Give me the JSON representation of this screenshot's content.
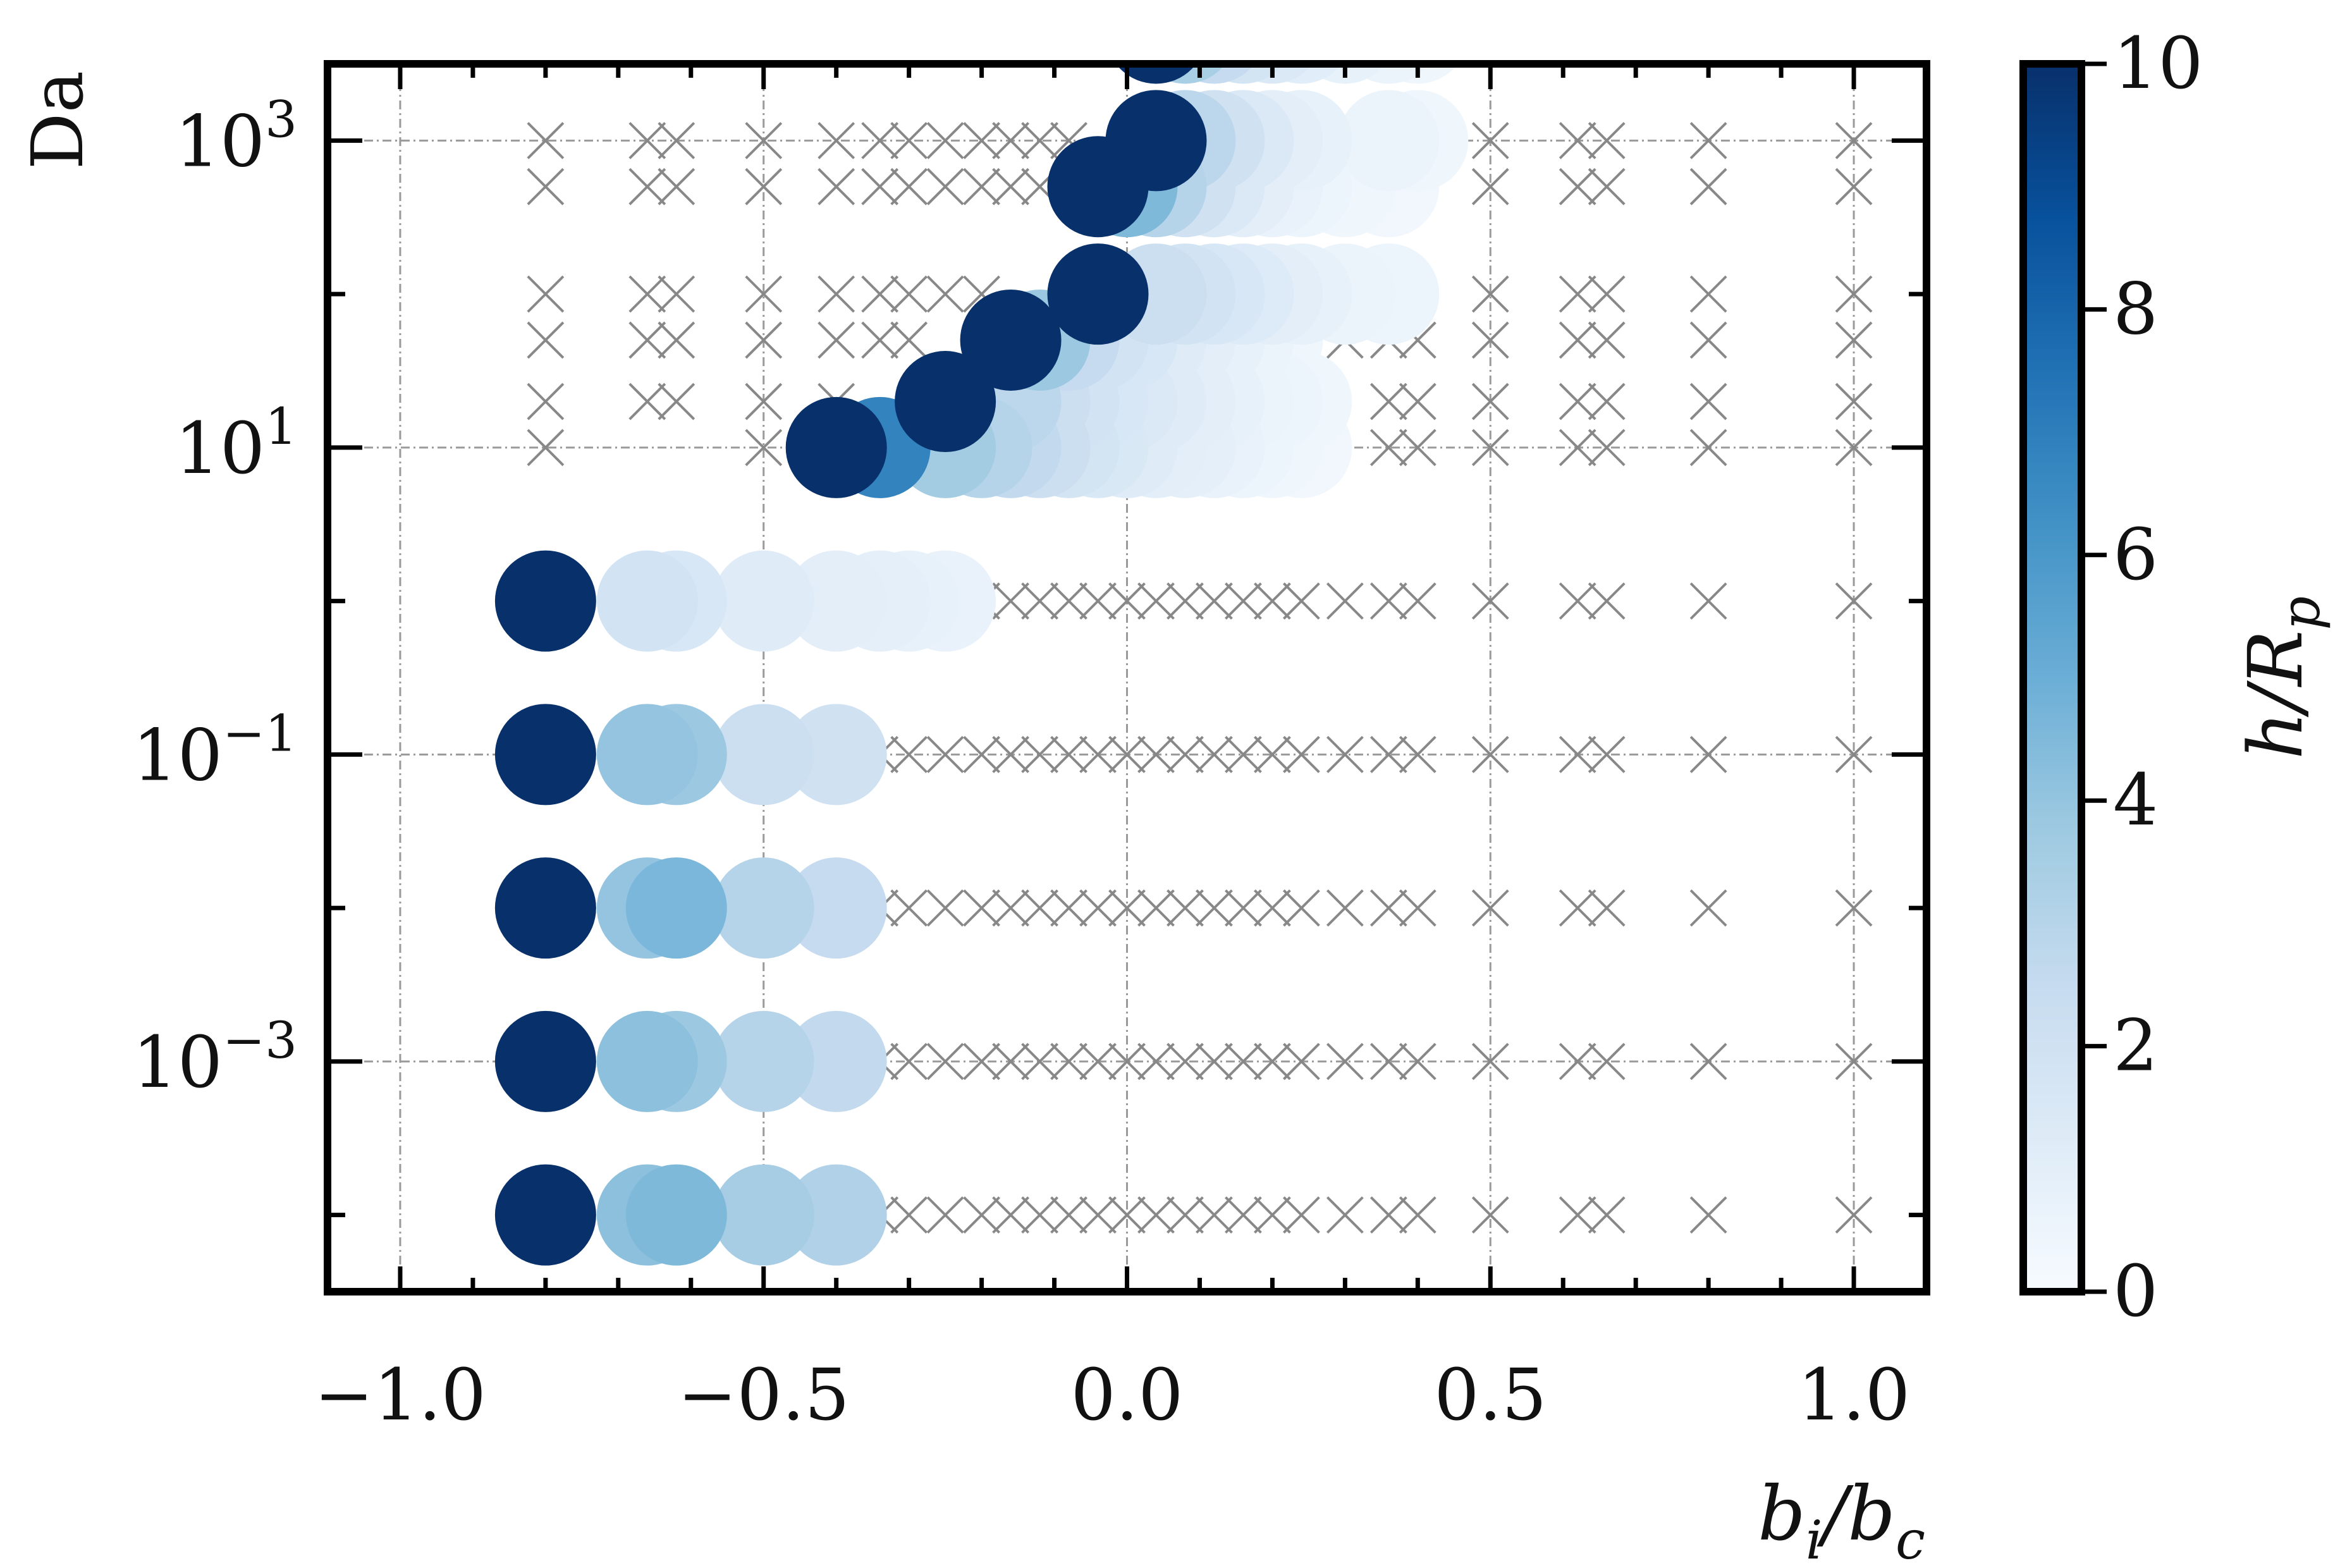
{
  "chart_data": {
    "type": "scatter",
    "xlabel": "b_i/b_c",
    "ylabel": "Da",
    "colorbar_label": "h/R_p",
    "xlim": [
      -1.1,
      1.1
    ],
    "ylim_log10": [
      -4.5,
      3.5
    ],
    "y_scale": "log",
    "grid": true,
    "x_ticks": [
      -1.0,
      -0.5,
      0.0,
      0.5,
      1.0
    ],
    "x_tick_labels": [
      "−1.0",
      "−0.5",
      "0.0",
      "0.5",
      "1.0"
    ],
    "y_ticks_log10": [
      -3,
      -1,
      1,
      3
    ],
    "y_tick_labels": [
      {
        "base": "10",
        "exp": "−3"
      },
      {
        "base": "10",
        "exp": "−1"
      },
      {
        "base": "10",
        "exp": "1"
      },
      {
        "base": "10",
        "exp": "3"
      }
    ],
    "colorbar": {
      "range": [
        0,
        10
      ],
      "ticks": [
        0,
        2,
        4,
        6,
        8,
        10
      ],
      "tick_labels": [
        "0",
        "2",
        "4",
        "6",
        "8",
        "10"
      ],
      "colors": [
        "#f7fbff",
        "#deebf7",
        "#c6dbef",
        "#9ecae1",
        "#6baed6",
        "#4292c6",
        "#2171b5",
        "#08519c",
        "#08306b"
      ]
    },
    "marker_color": "#888888",
    "no_depth_x_values": [
      -1.0,
      -0.8,
      -0.66,
      -0.62,
      -0.5,
      -0.4,
      -0.34,
      -0.3,
      -0.25,
      -0.2,
      -0.16,
      -0.12,
      -0.08,
      -0.04,
      0.0,
      0.04,
      0.08,
      0.12,
      0.16,
      0.2,
      0.24,
      0.3,
      0.36,
      0.4,
      0.5,
      0.62,
      0.66,
      0.8,
      1.0
    ],
    "no_depth_rows": [
      {
        "log10_da": -4,
        "x_min": -0.37
      },
      {
        "log10_da": -3,
        "x_min": -0.37
      },
      {
        "log10_da": -2,
        "x_min": -0.37
      },
      {
        "log10_da": -1,
        "x_min": -0.37
      },
      {
        "log10_da": 0,
        "x_min": -0.21
      },
      {
        "log10_da": 1,
        "x_min": 0.32
      },
      {
        "log10_da": 1.3,
        "x_min": 0.32
      },
      {
        "log10_da": 1.7,
        "x_min": 0.26
      },
      {
        "log10_da": 2,
        "x_min": 0.2
      },
      {
        "log10_da": 2.7,
        "x_min": 0.5
      },
      {
        "log10_da": 3,
        "x_min": 0.5
      },
      {
        "log10_da": 3.7,
        "x_min": 0.5
      }
    ],
    "no_depth_extra": [
      {
        "x": -0.8,
        "log10_da": 1
      },
      {
        "x": -0.5,
        "log10_da": 1
      },
      {
        "x": -0.8,
        "log10_da": 1.3
      },
      {
        "x": -0.66,
        "log10_da": 1.3
      },
      {
        "x": -0.62,
        "log10_da": 1.3
      },
      {
        "x": -0.5,
        "log10_da": 1.3
      },
      {
        "x": -0.4,
        "log10_da": 1.3
      },
      {
        "x": -0.8,
        "log10_da": 1.7
      },
      {
        "x": -0.66,
        "log10_da": 1.7
      },
      {
        "x": -0.62,
        "log10_da": 1.7
      },
      {
        "x": -0.5,
        "log10_da": 1.7
      },
      {
        "x": -0.4,
        "log10_da": 1.7
      },
      {
        "x": -0.34,
        "log10_da": 1.7
      },
      {
        "x": -0.3,
        "log10_da": 1.7
      },
      {
        "x": -0.8,
        "log10_da": 2
      },
      {
        "x": -0.66,
        "log10_da": 2
      },
      {
        "x": -0.62,
        "log10_da": 2
      },
      {
        "x": -0.5,
        "log10_da": 2
      },
      {
        "x": -0.4,
        "log10_da": 2
      },
      {
        "x": -0.34,
        "log10_da": 2
      },
      {
        "x": -0.3,
        "log10_da": 2
      },
      {
        "x": -0.25,
        "log10_da": 2
      },
      {
        "x": -0.2,
        "log10_da": 2
      },
      {
        "x": -0.8,
        "log10_da": 2.7
      },
      {
        "x": -0.66,
        "log10_da": 2.7
      },
      {
        "x": -0.62,
        "log10_da": 2.7
      },
      {
        "x": -0.5,
        "log10_da": 2.7
      },
      {
        "x": -0.4,
        "log10_da": 2.7
      },
      {
        "x": -0.34,
        "log10_da": 2.7
      },
      {
        "x": -0.3,
        "log10_da": 2.7
      },
      {
        "x": -0.25,
        "log10_da": 2.7
      },
      {
        "x": -0.2,
        "log10_da": 2.7
      },
      {
        "x": -0.16,
        "log10_da": 2.7
      },
      {
        "x": -0.12,
        "log10_da": 2.7
      },
      {
        "x": -0.08,
        "log10_da": 2.7
      },
      {
        "x": -0.8,
        "log10_da": 3
      },
      {
        "x": -0.66,
        "log10_da": 3
      },
      {
        "x": -0.62,
        "log10_da": 3
      },
      {
        "x": -0.5,
        "log10_da": 3
      },
      {
        "x": -0.4,
        "log10_da": 3
      },
      {
        "x": -0.34,
        "log10_da": 3
      },
      {
        "x": -0.3,
        "log10_da": 3
      },
      {
        "x": -0.25,
        "log10_da": 3
      },
      {
        "x": -0.2,
        "log10_da": 3
      },
      {
        "x": -0.16,
        "log10_da": 3
      },
      {
        "x": -0.12,
        "log10_da": 3
      },
      {
        "x": -0.08,
        "log10_da": 3
      },
      {
        "x": -1.0,
        "log10_da": 3.7
      },
      {
        "x": -0.8,
        "log10_da": 3.7
      },
      {
        "x": -0.66,
        "log10_da": 3.7
      },
      {
        "x": -0.62,
        "log10_da": 3.7
      },
      {
        "x": -0.5,
        "log10_da": 3.7
      },
      {
        "x": -0.4,
        "log10_da": 3.7
      },
      {
        "x": -0.34,
        "log10_da": 3.7
      },
      {
        "x": -0.3,
        "log10_da": 3.7
      },
      {
        "x": -0.25,
        "log10_da": 3.7
      },
      {
        "x": -0.2,
        "log10_da": 3.7
      },
      {
        "x": -0.16,
        "log10_da": 3.7
      },
      {
        "x": -0.12,
        "log10_da": 3.7
      },
      {
        "x": -0.08,
        "log10_da": 3.7
      },
      {
        "x": -0.04,
        "log10_da": 3.7
      },
      {
        "x": 0.0,
        "log10_da": 3.7
      }
    ],
    "depth_points": [
      {
        "x": -0.4,
        "log10_da": -4,
        "h": 3.2
      },
      {
        "x": -0.5,
        "log10_da": -4,
        "h": 3.5
      },
      {
        "x": -0.62,
        "log10_da": -4,
        "h": 4.5
      },
      {
        "x": -0.66,
        "log10_da": -4,
        "h": 4.2
      },
      {
        "x": -0.8,
        "log10_da": -4,
        "h": 10
      },
      {
        "x": -0.4,
        "log10_da": -3,
        "h": 2.6
      },
      {
        "x": -0.5,
        "log10_da": -3,
        "h": 3.0
      },
      {
        "x": -0.62,
        "log10_da": -3,
        "h": 3.8
      },
      {
        "x": -0.66,
        "log10_da": -3,
        "h": 4.2
      },
      {
        "x": -0.8,
        "log10_da": -3,
        "h": 10
      },
      {
        "x": -0.4,
        "log10_da": -2,
        "h": 2.5
      },
      {
        "x": -0.5,
        "log10_da": -2,
        "h": 3.0
      },
      {
        "x": -0.62,
        "log10_da": -2,
        "h": 4.6
      },
      {
        "x": -0.66,
        "log10_da": -2,
        "h": 4.0
      },
      {
        "x": -0.8,
        "log10_da": -2,
        "h": 10
      },
      {
        "x": -0.4,
        "log10_da": -1,
        "h": 2.0
      },
      {
        "x": -0.5,
        "log10_da": -1,
        "h": 2.2
      },
      {
        "x": -0.62,
        "log10_da": -1,
        "h": 3.8
      },
      {
        "x": -0.66,
        "log10_da": -1,
        "h": 4.0
      },
      {
        "x": -0.8,
        "log10_da": -1,
        "h": 10
      },
      {
        "x": -0.25,
        "log10_da": 0,
        "h": 0.7
      },
      {
        "x": -0.3,
        "log10_da": 0,
        "h": 0.8
      },
      {
        "x": -0.34,
        "log10_da": 0,
        "h": 0.9
      },
      {
        "x": -0.4,
        "log10_da": 0,
        "h": 1.0
      },
      {
        "x": -0.5,
        "log10_da": 0,
        "h": 1.2
      },
      {
        "x": -0.62,
        "log10_da": 0,
        "h": 1.6
      },
      {
        "x": -0.66,
        "log10_da": 0,
        "h": 1.9
      },
      {
        "x": -0.8,
        "log10_da": 0,
        "h": 10
      },
      {
        "x": 0.24,
        "log10_da": 1,
        "h": 0.3
      },
      {
        "x": 0.2,
        "log10_da": 1,
        "h": 0.4
      },
      {
        "x": 0.16,
        "log10_da": 1,
        "h": 0.5
      },
      {
        "x": 0.12,
        "log10_da": 1,
        "h": 0.7
      },
      {
        "x": 0.08,
        "log10_da": 1,
        "h": 0.9
      },
      {
        "x": 0.04,
        "log10_da": 1,
        "h": 1.0
      },
      {
        "x": 0.0,
        "log10_da": 1,
        "h": 1.2
      },
      {
        "x": -0.04,
        "log10_da": 1,
        "h": 1.5
      },
      {
        "x": -0.08,
        "log10_da": 1,
        "h": 1.8
      },
      {
        "x": -0.12,
        "log10_da": 1,
        "h": 2.2
      },
      {
        "x": -0.16,
        "log10_da": 1,
        "h": 2.6
      },
      {
        "x": -0.2,
        "log10_da": 1,
        "h": 3.0
      },
      {
        "x": -0.25,
        "log10_da": 1,
        "h": 3.6
      },
      {
        "x": -0.34,
        "log10_da": 1,
        "h": 6.8
      },
      {
        "x": -0.4,
        "log10_da": 1,
        "h": 10
      },
      {
        "x": 0.24,
        "log10_da": 1.3,
        "h": 0.4
      },
      {
        "x": 0.2,
        "log10_da": 1.3,
        "h": 0.5
      },
      {
        "x": 0.16,
        "log10_da": 1.3,
        "h": 0.6
      },
      {
        "x": 0.12,
        "log10_da": 1.3,
        "h": 0.8
      },
      {
        "x": 0.08,
        "log10_da": 1.3,
        "h": 1.0
      },
      {
        "x": 0.04,
        "log10_da": 1.3,
        "h": 1.2
      },
      {
        "x": 0.0,
        "log10_da": 1.3,
        "h": 1.4
      },
      {
        "x": -0.04,
        "log10_da": 1.3,
        "h": 1.6
      },
      {
        "x": -0.08,
        "log10_da": 1.3,
        "h": 1.9
      },
      {
        "x": -0.12,
        "log10_da": 1.3,
        "h": 2.2
      },
      {
        "x": -0.16,
        "log10_da": 1.3,
        "h": 2.8
      },
      {
        "x": -0.25,
        "log10_da": 1.3,
        "h": 10
      },
      {
        "x": 0.2,
        "log10_da": 1.7,
        "h": 0.4
      },
      {
        "x": 0.16,
        "log10_da": 1.7,
        "h": 0.6
      },
      {
        "x": 0.12,
        "log10_da": 1.7,
        "h": 0.8
      },
      {
        "x": 0.08,
        "log10_da": 1.7,
        "h": 1.0
      },
      {
        "x": 0.04,
        "log10_da": 1.7,
        "h": 1.2
      },
      {
        "x": 0.0,
        "log10_da": 1.7,
        "h": 1.6
      },
      {
        "x": -0.04,
        "log10_da": 1.7,
        "h": 1.9
      },
      {
        "x": -0.08,
        "log10_da": 1.7,
        "h": 2.5
      },
      {
        "x": -0.12,
        "log10_da": 1.7,
        "h": 3.8
      },
      {
        "x": -0.16,
        "log10_da": 1.7,
        "h": 10
      },
      {
        "x": 0.36,
        "log10_da": 2,
        "h": 0.5
      },
      {
        "x": 0.3,
        "log10_da": 2,
        "h": 0.6
      },
      {
        "x": 0.24,
        "log10_da": 2,
        "h": 0.8
      },
      {
        "x": 0.2,
        "log10_da": 2,
        "h": 1.0
      },
      {
        "x": 0.16,
        "log10_da": 2,
        "h": 1.3
      },
      {
        "x": 0.12,
        "log10_da": 2,
        "h": 1.6
      },
      {
        "x": 0.08,
        "log10_da": 2,
        "h": 1.9
      },
      {
        "x": 0.04,
        "log10_da": 2,
        "h": 2.2
      },
      {
        "x": -0.04,
        "log10_da": 2,
        "h": 10
      },
      {
        "x": 0.36,
        "log10_da": 2.7,
        "h": 0.3
      },
      {
        "x": 0.3,
        "log10_da": 2.7,
        "h": 0.4
      },
      {
        "x": 0.24,
        "log10_da": 2.7,
        "h": 0.5
      },
      {
        "x": 0.2,
        "log10_da": 2.7,
        "h": 0.7
      },
      {
        "x": 0.16,
        "log10_da": 2.7,
        "h": 1.0
      },
      {
        "x": 0.12,
        "log10_da": 2.7,
        "h": 1.4
      },
      {
        "x": 0.08,
        "log10_da": 2.7,
        "h": 2.0
      },
      {
        "x": 0.04,
        "log10_da": 2.7,
        "h": 3.0
      },
      {
        "x": 0.0,
        "log10_da": 2.7,
        "h": 4.5
      },
      {
        "x": -0.04,
        "log10_da": 2.7,
        "h": 10
      },
      {
        "x": 0.4,
        "log10_da": 3,
        "h": 0.4
      },
      {
        "x": 0.36,
        "log10_da": 3,
        "h": 0.6
      },
      {
        "x": 0.24,
        "log10_da": 3,
        "h": 0.8
      },
      {
        "x": 0.2,
        "log10_da": 3,
        "h": 1.0
      },
      {
        "x": 0.16,
        "log10_da": 3,
        "h": 1.4
      },
      {
        "x": 0.12,
        "log10_da": 3,
        "h": 2.0
      },
      {
        "x": 0.08,
        "log10_da": 3,
        "h": 2.8
      },
      {
        "x": 0.04,
        "log10_da": 3,
        "h": 10
      },
      {
        "x": 0.4,
        "log10_da": 3.7,
        "h": 0.4
      },
      {
        "x": 0.36,
        "log10_da": 3.7,
        "h": 0.6
      },
      {
        "x": 0.3,
        "log10_da": 3.7,
        "h": 0.8
      },
      {
        "x": 0.24,
        "log10_da": 3.7,
        "h": 1.1
      },
      {
        "x": 0.2,
        "log10_da": 3.7,
        "h": 1.4
      },
      {
        "x": 0.16,
        "log10_da": 3.7,
        "h": 1.8
      },
      {
        "x": 0.12,
        "log10_da": 3.7,
        "h": 2.5
      },
      {
        "x": 0.08,
        "log10_da": 3.7,
        "h": 3.4
      },
      {
        "x": 0.04,
        "log10_da": 3.7,
        "h": 10
      }
    ]
  }
}
